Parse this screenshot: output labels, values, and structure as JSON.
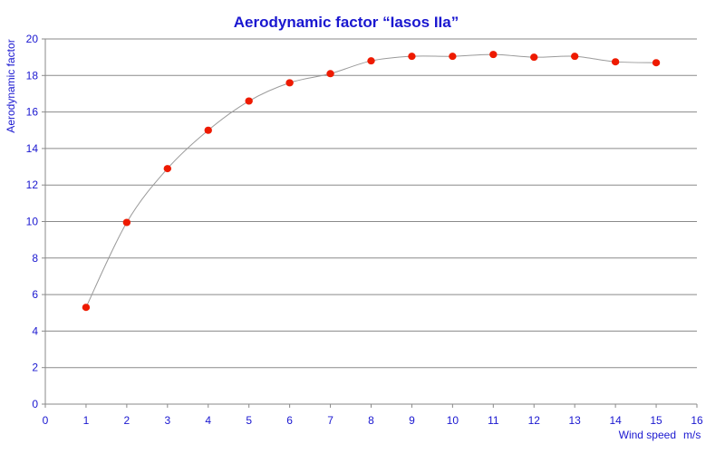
{
  "chart_data": {
    "type": "scatter",
    "title": "Aerodynamic factor “Iasos IIa”",
    "xlabel": "Wind speed",
    "xunit": "m/s",
    "ylabel": "Aerodynamic factor",
    "xlim": [
      0,
      16
    ],
    "ylim": [
      0,
      20
    ],
    "x_ticks": [
      "0",
      "1",
      "2",
      "3",
      "4",
      "5",
      "6",
      "7",
      "8",
      "9",
      "10",
      "11",
      "12",
      "13",
      "14",
      "15",
      "16"
    ],
    "y_ticks": [
      "0",
      "2",
      "4",
      "6",
      "8",
      "10",
      "12",
      "14",
      "16",
      "18",
      "20"
    ],
    "grid": "horizontal",
    "smooth_line": true,
    "x": [
      1,
      2,
      3,
      4,
      5,
      6,
      7,
      8,
      9,
      10,
      11,
      12,
      13,
      14,
      15
    ],
    "values": [
      5.3,
      9.95,
      12.9,
      15.0,
      16.6,
      17.6,
      18.1,
      18.8,
      19.05,
      19.05,
      19.15,
      19.0,
      19.05,
      18.75,
      18.7
    ],
    "colors": {
      "text": "#1a17d0",
      "grid": "#8a8a8a",
      "axis": "#8a8a8a",
      "marker": "#ee1a00",
      "line": "#9a9a9a"
    }
  }
}
